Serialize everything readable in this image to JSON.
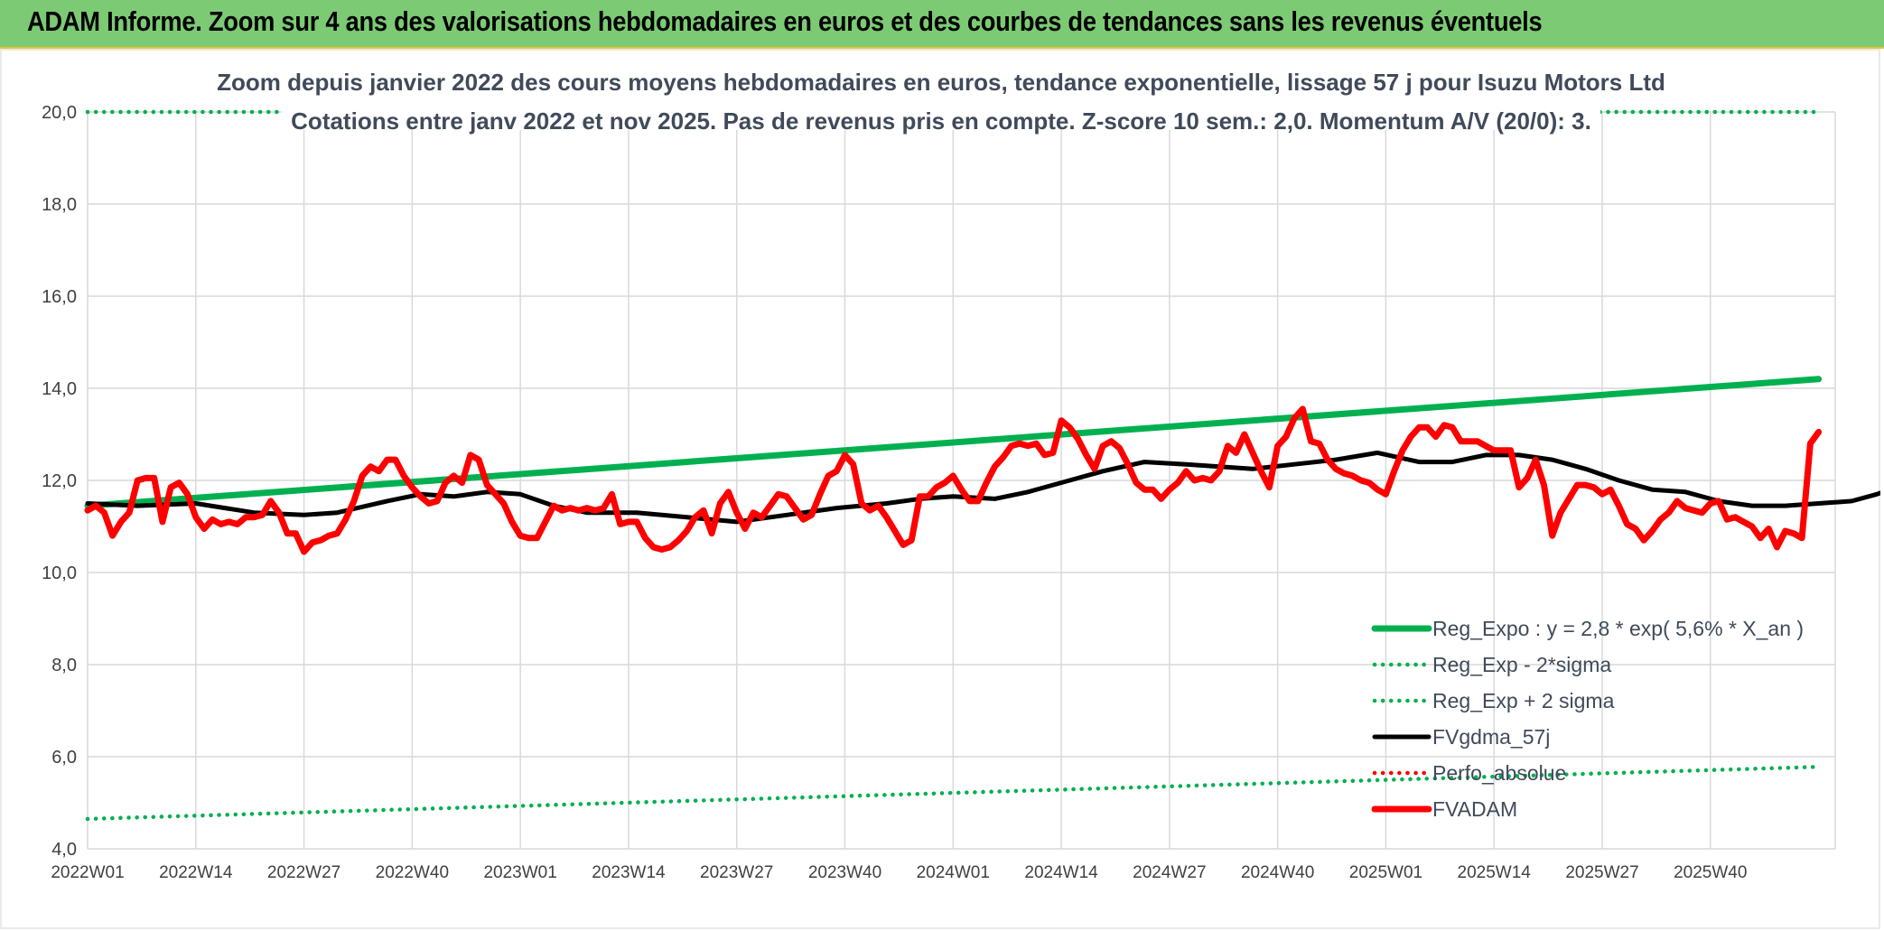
{
  "header": {
    "title": "ADAM Informe. Zoom sur 4 ans des valorisations hebdomadaires en euros et des courbes de tendances sans les revenus éventuels"
  },
  "chart_data": {
    "type": "line",
    "title": "Zoom depuis janvier 2022 des cours moyens hebdomadaires en euros, tendance exponentielle, lissage 57 j pour Isuzu Motors Ltd",
    "subtitle": "Cotations entre janv 2022 et nov 2025. Pas de revenus pris en compte. Z-score 10 sem.: 2,0. Momentum A/V (20/0): 3.",
    "xlabel": "",
    "ylabel": "",
    "ylim": [
      4,
      20
    ],
    "yticks": [
      "4,0",
      "6,0",
      "8,0",
      "10,0",
      "12,0",
      "14,0",
      "16,0",
      "18,0",
      "20,0"
    ],
    "x_tick_labels": [
      "2022W01",
      "2022W14",
      "2022W27",
      "2022W40",
      "2023W01",
      "2023W14",
      "2023W27",
      "2023W40",
      "2024W01",
      "2024W14",
      "2024W27",
      "2024W40",
      "2025W01",
      "2025W14",
      "2025W27",
      "2025W40"
    ],
    "x_range_weeks": [
      0,
      208
    ],
    "grid": "vertical and horizontal",
    "legend_position": "bottom-right",
    "series": [
      {
        "name": "Reg_Expo : y = 2,8 * exp( 5,6% *  X_an )",
        "style": "solid-thick",
        "color": "#00b050",
        "points": [
          [
            0,
            11.45
          ],
          [
            208,
            14.2
          ]
        ]
      },
      {
        "name": "Reg_Exp - 2*sigma",
        "style": "dotted",
        "color": "#00b050",
        "points": [
          [
            0,
            4.65
          ],
          [
            208,
            5.78
          ]
        ]
      },
      {
        "name": "Reg_Exp + 2 sigma",
        "style": "dotted",
        "color": "#00b050",
        "points": [
          [
            0,
            20.0
          ],
          [
            208,
            20.0
          ]
        ]
      },
      {
        "name": "FVgdma_57j",
        "style": "solid",
        "color": "#000000",
        "points": [
          [
            0,
            11.5
          ],
          [
            6,
            11.45
          ],
          [
            13,
            11.5
          ],
          [
            20,
            11.3
          ],
          [
            26,
            11.25
          ],
          [
            30,
            11.3
          ],
          [
            36,
            11.55
          ],
          [
            40,
            11.7
          ],
          [
            44,
            11.65
          ],
          [
            48,
            11.75
          ],
          [
            52,
            11.7
          ],
          [
            56,
            11.45
          ],
          [
            60,
            11.3
          ],
          [
            66,
            11.3
          ],
          [
            72,
            11.2
          ],
          [
            78,
            11.1
          ],
          [
            84,
            11.25
          ],
          [
            90,
            11.4
          ],
          [
            96,
            11.5
          ],
          [
            100,
            11.6
          ],
          [
            104,
            11.65
          ],
          [
            109,
            11.6
          ],
          [
            113,
            11.75
          ],
          [
            118,
            12.0
          ],
          [
            122,
            12.2
          ],
          [
            127,
            12.4
          ],
          [
            132,
            12.35
          ],
          [
            136,
            12.3
          ],
          [
            140,
            12.25
          ],
          [
            145,
            12.35
          ],
          [
            150,
            12.45
          ],
          [
            155,
            12.6
          ],
          [
            160,
            12.4
          ],
          [
            164,
            12.4
          ],
          [
            168,
            12.55
          ],
          [
            172,
            12.55
          ],
          [
            176,
            12.45
          ],
          [
            180,
            12.25
          ],
          [
            184,
            12.0
          ],
          [
            188,
            11.8
          ],
          [
            192,
            11.75
          ],
          [
            196,
            11.55
          ],
          [
            200,
            11.45
          ],
          [
            204,
            11.45
          ],
          [
            208,
            11.5
          ],
          [
            212,
            11.55
          ],
          [
            215,
            11.7
          ],
          [
            218,
            11.9
          ],
          [
            222,
            12.3
          ]
        ]
      },
      {
        "name": "Perfo_absolue",
        "style": "dotted",
        "color": "#ff0000",
        "points": []
      },
      {
        "name": "FVADAM",
        "style": "solid-thick",
        "color": "#ff0000",
        "points": [
          [
            0,
            11.35
          ],
          [
            1,
            11.45
          ],
          [
            2,
            11.3
          ],
          [
            3,
            10.8
          ],
          [
            4,
            11.1
          ],
          [
            5,
            11.3
          ],
          [
            6,
            12.0
          ],
          [
            7,
            12.05
          ],
          [
            8,
            12.05
          ],
          [
            9,
            11.1
          ],
          [
            10,
            11.85
          ],
          [
            11,
            11.95
          ],
          [
            12,
            11.7
          ],
          [
            13,
            11.2
          ],
          [
            14,
            10.95
          ],
          [
            15,
            11.15
          ],
          [
            16,
            11.05
          ],
          [
            17,
            11.1
          ],
          [
            18,
            11.05
          ],
          [
            19,
            11.2
          ],
          [
            20,
            11.2
          ],
          [
            21,
            11.25
          ],
          [
            22,
            11.55
          ],
          [
            23,
            11.3
          ],
          [
            24,
            10.85
          ],
          [
            25,
            10.85
          ],
          [
            26,
            10.45
          ],
          [
            27,
            10.65
          ],
          [
            28,
            10.7
          ],
          [
            29,
            10.8
          ],
          [
            30,
            10.85
          ],
          [
            31,
            11.15
          ],
          [
            32,
            11.55
          ],
          [
            33,
            12.1
          ],
          [
            34,
            12.3
          ],
          [
            35,
            12.2
          ],
          [
            36,
            12.45
          ],
          [
            37,
            12.45
          ],
          [
            38,
            12.1
          ],
          [
            39,
            11.85
          ],
          [
            40,
            11.65
          ],
          [
            41,
            11.5
          ],
          [
            42,
            11.55
          ],
          [
            43,
            11.95
          ],
          [
            44,
            12.1
          ],
          [
            45,
            11.95
          ],
          [
            46,
            12.55
          ],
          [
            47,
            12.45
          ],
          [
            48,
            11.9
          ],
          [
            49,
            11.7
          ],
          [
            50,
            11.5
          ],
          [
            51,
            11.1
          ],
          [
            52,
            10.8
          ],
          [
            53,
            10.75
          ],
          [
            54,
            10.75
          ],
          [
            55,
            11.1
          ],
          [
            56,
            11.45
          ],
          [
            57,
            11.35
          ],
          [
            58,
            11.4
          ],
          [
            59,
            11.35
          ],
          [
            60,
            11.4
          ],
          [
            61,
            11.35
          ],
          [
            62,
            11.4
          ],
          [
            63,
            11.7
          ],
          [
            64,
            11.05
          ],
          [
            65,
            11.1
          ],
          [
            66,
            11.1
          ],
          [
            67,
            10.75
          ],
          [
            68,
            10.55
          ],
          [
            69,
            10.5
          ],
          [
            70,
            10.55
          ],
          [
            71,
            10.7
          ],
          [
            72,
            10.9
          ],
          [
            73,
            11.2
          ],
          [
            74,
            11.35
          ],
          [
            75,
            10.85
          ],
          [
            76,
            11.5
          ],
          [
            77,
            11.75
          ],
          [
            78,
            11.3
          ],
          [
            79,
            10.95
          ],
          [
            80,
            11.3
          ],
          [
            81,
            11.2
          ],
          [
            82,
            11.45
          ],
          [
            83,
            11.7
          ],
          [
            84,
            11.65
          ],
          [
            85,
            11.4
          ],
          [
            86,
            11.15
          ],
          [
            87,
            11.25
          ],
          [
            88,
            11.7
          ],
          [
            89,
            12.1
          ],
          [
            90,
            12.2
          ],
          [
            91,
            12.55
          ],
          [
            92,
            12.35
          ],
          [
            93,
            11.5
          ],
          [
            94,
            11.35
          ],
          [
            95,
            11.45
          ],
          [
            96,
            11.2
          ],
          [
            97,
            10.9
          ],
          [
            98,
            10.6
          ],
          [
            99,
            10.7
          ],
          [
            100,
            11.65
          ],
          [
            101,
            11.65
          ],
          [
            102,
            11.85
          ],
          [
            103,
            11.95
          ],
          [
            104,
            12.1
          ],
          [
            105,
            11.8
          ],
          [
            106,
            11.55
          ],
          [
            107,
            11.55
          ],
          [
            108,
            11.95
          ],
          [
            109,
            12.3
          ],
          [
            110,
            12.5
          ],
          [
            111,
            12.75
          ],
          [
            112,
            12.8
          ],
          [
            113,
            12.75
          ],
          [
            114,
            12.8
          ],
          [
            115,
            12.55
          ],
          [
            116,
            12.6
          ],
          [
            117,
            13.3
          ],
          [
            118,
            13.15
          ],
          [
            119,
            12.9
          ],
          [
            120,
            12.55
          ],
          [
            121,
            12.25
          ],
          [
            122,
            12.75
          ],
          [
            123,
            12.85
          ],
          [
            124,
            12.7
          ],
          [
            125,
            12.35
          ],
          [
            126,
            11.95
          ],
          [
            127,
            11.8
          ],
          [
            128,
            11.8
          ],
          [
            129,
            11.6
          ],
          [
            130,
            11.8
          ],
          [
            131,
            11.95
          ],
          [
            132,
            12.2
          ],
          [
            133,
            12.0
          ],
          [
            134,
            12.05
          ],
          [
            135,
            12.0
          ],
          [
            136,
            12.2
          ],
          [
            137,
            12.75
          ],
          [
            138,
            12.6
          ],
          [
            139,
            13.0
          ],
          [
            140,
            12.6
          ],
          [
            141,
            12.2
          ],
          [
            142,
            11.85
          ],
          [
            143,
            12.75
          ],
          [
            144,
            12.95
          ],
          [
            145,
            13.35
          ],
          [
            146,
            13.55
          ],
          [
            147,
            12.85
          ],
          [
            148,
            12.8
          ],
          [
            149,
            12.45
          ],
          [
            150,
            12.25
          ],
          [
            151,
            12.15
          ],
          [
            152,
            12.1
          ],
          [
            153,
            12.0
          ],
          [
            154,
            11.95
          ],
          [
            155,
            11.8
          ],
          [
            156,
            11.7
          ],
          [
            157,
            12.2
          ],
          [
            158,
            12.65
          ],
          [
            159,
            12.95
          ],
          [
            160,
            13.15
          ],
          [
            161,
            13.15
          ],
          [
            162,
            12.95
          ],
          [
            163,
            13.2
          ],
          [
            164,
            13.15
          ],
          [
            165,
            12.85
          ],
          [
            166,
            12.85
          ],
          [
            167,
            12.85
          ],
          [
            168,
            12.75
          ],
          [
            169,
            12.65
          ],
          [
            170,
            12.65
          ],
          [
            171,
            12.65
          ],
          [
            172,
            11.85
          ],
          [
            173,
            12.05
          ],
          [
            174,
            12.45
          ],
          [
            175,
            11.9
          ],
          [
            176,
            10.8
          ],
          [
            177,
            11.3
          ],
          [
            178,
            11.6
          ],
          [
            179,
            11.9
          ],
          [
            180,
            11.9
          ],
          [
            181,
            11.85
          ],
          [
            182,
            11.7
          ],
          [
            183,
            11.8
          ],
          [
            184,
            11.45
          ],
          [
            185,
            11.05
          ],
          [
            186,
            10.95
          ],
          [
            187,
            10.7
          ],
          [
            188,
            10.9
          ],
          [
            189,
            11.15
          ],
          [
            190,
            11.3
          ],
          [
            191,
            11.55
          ],
          [
            192,
            11.4
          ],
          [
            193,
            11.35
          ],
          [
            194,
            11.3
          ],
          [
            195,
            11.5
          ],
          [
            196,
            11.55
          ],
          [
            197,
            11.15
          ],
          [
            198,
            11.2
          ],
          [
            199,
            11.1
          ],
          [
            200,
            11.0
          ],
          [
            201,
            10.75
          ],
          [
            202,
            10.95
          ],
          [
            203,
            10.55
          ],
          [
            204,
            10.9
          ],
          [
            205,
            10.85
          ],
          [
            206,
            10.75
          ],
          [
            207,
            12.8
          ],
          [
            208,
            13.05
          ]
        ]
      }
    ]
  }
}
